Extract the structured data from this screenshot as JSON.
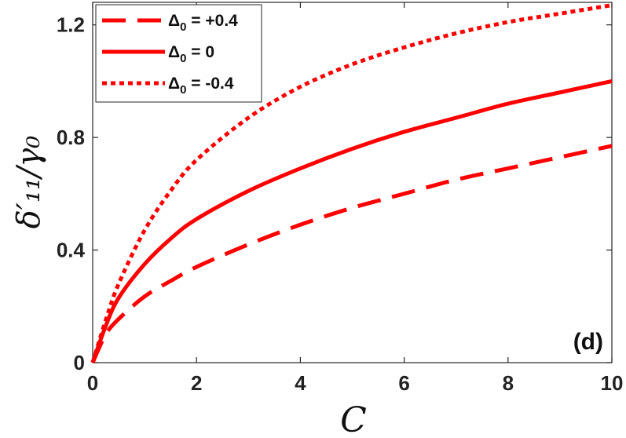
{
  "chart_data": {
    "type": "line",
    "xlabel": "C",
    "ylabel": "δ′₁₁/γ₀",
    "xlim": [
      0,
      10
    ],
    "ylim": [
      0,
      1.28
    ],
    "x_ticks": [
      0,
      2,
      4,
      6,
      8,
      10
    ],
    "y_ticks": [
      0,
      0.4,
      0.8,
      1.2
    ],
    "x_tick_labels": [
      "0",
      "2",
      "4",
      "6",
      "8",
      "10"
    ],
    "y_tick_labels": [
      "0",
      "0.4",
      "0.8",
      "1.2"
    ],
    "grid": false,
    "legend_position": "top-left",
    "annotation": "(d)",
    "series": [
      {
        "name": "Δ0 = +0.4",
        "legend_main": "Δ",
        "legend_sub": "0",
        "legend_rest": " = +0.4",
        "style": "dashed",
        "color": "#ff0000",
        "x": [
          0,
          0.25,
          0.5,
          1,
          1.5,
          2,
          3,
          4,
          5,
          6,
          7,
          8,
          9,
          10
        ],
        "y": [
          0,
          0.1,
          0.155,
          0.235,
          0.29,
          0.34,
          0.42,
          0.49,
          0.55,
          0.6,
          0.65,
          0.69,
          0.73,
          0.77
        ]
      },
      {
        "name": "Δ0 = 0",
        "legend_main": "Δ",
        "legend_sub": "0",
        "legend_rest": " = 0",
        "style": "solid",
        "color": "#ff0000",
        "x": [
          0,
          0.25,
          0.5,
          1,
          1.5,
          2,
          3,
          4,
          5,
          6,
          7,
          8,
          9,
          10
        ],
        "y": [
          0,
          0.13,
          0.23,
          0.35,
          0.44,
          0.51,
          0.61,
          0.69,
          0.76,
          0.82,
          0.87,
          0.92,
          0.96,
          1.0
        ]
      },
      {
        "name": "Δ0 = -0.4",
        "legend_main": "Δ",
        "legend_sub": "0",
        "legend_rest": " = -0.4",
        "style": "dotted",
        "color": "#ff0000",
        "x": [
          0,
          0.25,
          0.5,
          1,
          1.5,
          2,
          3,
          4,
          5,
          6,
          7,
          8,
          9,
          10
        ],
        "y": [
          0,
          0.15,
          0.28,
          0.47,
          0.61,
          0.72,
          0.87,
          0.98,
          1.06,
          1.12,
          1.17,
          1.21,
          1.24,
          1.27
        ]
      }
    ]
  }
}
